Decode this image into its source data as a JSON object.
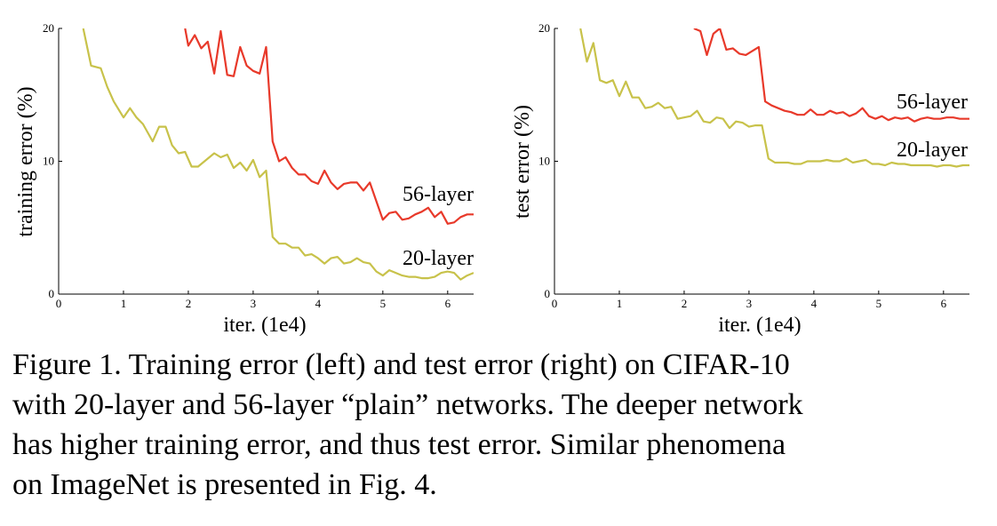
{
  "caption": {
    "lines": [
      "Figure 1. Training error (left) and test error (right) on CIFAR-10",
      "with 20-layer and 56-layer “plain” networks. The deeper network",
      "has higher training error, and thus test error.  Similar phenomena",
      "on ImageNet is presented in Fig. 4."
    ]
  },
  "colors": {
    "red": "#e8392a",
    "olive": "#c8c24a"
  },
  "chart_data": [
    {
      "type": "line",
      "title": "",
      "xlabel": "iter. (1e4)",
      "ylabel": "training error (%)",
      "xlim": [
        0,
        6.4
      ],
      "ylim": [
        0,
        20
      ],
      "xticks": [
        0,
        1,
        2,
        3,
        4,
        5,
        6
      ],
      "yticks": [
        0,
        10,
        20
      ],
      "grid": false,
      "series": [
        {
          "name": "56-layer",
          "color": "#e8392a",
          "x": [
            1.95,
            2.0,
            2.1,
            2.2,
            2.3,
            2.4,
            2.5,
            2.6,
            2.7,
            2.8,
            2.9,
            3.0,
            3.1,
            3.2,
            3.3,
            3.4,
            3.5,
            3.6,
            3.7,
            3.8,
            3.9,
            4.0,
            4.1,
            4.2,
            4.3,
            4.4,
            4.5,
            4.6,
            4.7,
            4.8,
            4.9,
            5.0,
            5.1,
            5.2,
            5.3,
            5.4,
            5.5,
            5.6,
            5.7,
            5.8,
            5.9,
            6.0,
            6.1,
            6.2,
            6.3,
            6.4
          ],
          "y": [
            20.0,
            18.7,
            19.5,
            18.5,
            19.0,
            16.6,
            19.8,
            16.5,
            16.4,
            18.6,
            17.2,
            16.8,
            16.6,
            18.6,
            11.5,
            10.0,
            10.3,
            9.5,
            9.0,
            9.0,
            8.5,
            8.3,
            9.3,
            8.4,
            7.9,
            8.3,
            8.4,
            8.4,
            7.8,
            8.4,
            7.0,
            5.6,
            6.1,
            6.2,
            5.6,
            5.7,
            6.0,
            6.2,
            6.5,
            5.8,
            6.2,
            5.3,
            5.4,
            5.8,
            6.0,
            6.0
          ]
        },
        {
          "name": "20-layer",
          "color": "#c8c24a",
          "x": [
            0.38,
            0.5,
            0.65,
            0.75,
            0.85,
            1.0,
            1.1,
            1.2,
            1.3,
            1.45,
            1.55,
            1.65,
            1.75,
            1.85,
            1.95,
            2.05,
            2.15,
            2.3,
            2.4,
            2.5,
            2.6,
            2.7,
            2.8,
            2.9,
            3.0,
            3.1,
            3.2,
            3.3,
            3.4,
            3.5,
            3.6,
            3.7,
            3.8,
            3.9,
            4.0,
            4.1,
            4.2,
            4.3,
            4.4,
            4.5,
            4.6,
            4.7,
            4.8,
            4.9,
            5.0,
            5.1,
            5.2,
            5.3,
            5.4,
            5.5,
            5.6,
            5.7,
            5.8,
            5.9,
            6.0,
            6.1,
            6.2,
            6.3,
            6.4
          ],
          "y": [
            20.0,
            17.2,
            17.0,
            15.6,
            14.5,
            13.3,
            14.0,
            13.3,
            12.8,
            11.5,
            12.6,
            12.6,
            11.2,
            10.6,
            10.7,
            9.6,
            9.6,
            10.2,
            10.6,
            10.3,
            10.5,
            9.5,
            9.9,
            9.3,
            10.1,
            8.8,
            9.3,
            4.3,
            3.8,
            3.8,
            3.5,
            3.5,
            2.9,
            3.0,
            2.7,
            2.3,
            2.7,
            2.8,
            2.3,
            2.4,
            2.7,
            2.4,
            2.3,
            1.7,
            1.4,
            1.8,
            1.6,
            1.4,
            1.3,
            1.3,
            1.2,
            1.2,
            1.3,
            1.6,
            1.7,
            1.6,
            1.1,
            1.4,
            1.6
          ]
        }
      ]
    },
    {
      "type": "line",
      "title": "",
      "xlabel": "iter. (1e4)",
      "ylabel": "test error (%)",
      "xlim": [
        0,
        6.4
      ],
      "ylim": [
        0,
        20
      ],
      "xticks": [
        0,
        1,
        2,
        3,
        4,
        5,
        6
      ],
      "yticks": [
        0,
        10,
        20
      ],
      "grid": false,
      "series": [
        {
          "name": "56-layer",
          "color": "#e8392a",
          "x": [
            2.15,
            2.25,
            2.35,
            2.45,
            2.55,
            2.65,
            2.75,
            2.85,
            2.95,
            3.05,
            3.15,
            3.25,
            3.35,
            3.45,
            3.55,
            3.65,
            3.75,
            3.85,
            3.95,
            4.05,
            4.15,
            4.25,
            4.35,
            4.45,
            4.55,
            4.65,
            4.75,
            4.85,
            4.95,
            5.05,
            5.15,
            5.25,
            5.35,
            5.45,
            5.55,
            5.65,
            5.75,
            5.85,
            5.95,
            6.05,
            6.15,
            6.25,
            6.4
          ],
          "y": [
            20.0,
            19.8,
            18.0,
            19.6,
            20.0,
            18.4,
            18.5,
            18.1,
            18.0,
            18.3,
            18.6,
            14.5,
            14.2,
            14.0,
            13.8,
            13.7,
            13.5,
            13.5,
            13.9,
            13.5,
            13.5,
            13.8,
            13.6,
            13.7,
            13.4,
            13.6,
            14.0,
            13.4,
            13.2,
            13.4,
            13.1,
            13.3,
            13.2,
            13.3,
            13.0,
            13.2,
            13.3,
            13.2,
            13.2,
            13.3,
            13.3,
            13.2,
            13.2
          ]
        },
        {
          "name": "20-layer",
          "color": "#c8c24a",
          "x": [
            0.4,
            0.5,
            0.6,
            0.7,
            0.8,
            0.9,
            1.0,
            1.1,
            1.2,
            1.3,
            1.4,
            1.5,
            1.6,
            1.7,
            1.8,
            1.9,
            2.0,
            2.1,
            2.2,
            2.3,
            2.4,
            2.5,
            2.6,
            2.7,
            2.8,
            2.9,
            3.0,
            3.1,
            3.2,
            3.3,
            3.4,
            3.5,
            3.6,
            3.7,
            3.8,
            3.9,
            4.0,
            4.1,
            4.2,
            4.3,
            4.4,
            4.5,
            4.6,
            4.7,
            4.8,
            4.9,
            5.0,
            5.1,
            5.2,
            5.3,
            5.4,
            5.5,
            5.6,
            5.7,
            5.8,
            5.9,
            6.0,
            6.1,
            6.2,
            6.3,
            6.4
          ],
          "y": [
            20.0,
            17.5,
            18.9,
            16.1,
            15.9,
            16.1,
            14.9,
            16.0,
            14.8,
            14.8,
            14.0,
            14.1,
            14.4,
            14.0,
            14.1,
            13.2,
            13.3,
            13.4,
            13.8,
            13.0,
            12.9,
            13.3,
            13.2,
            12.5,
            13.0,
            12.9,
            12.6,
            12.7,
            12.7,
            10.2,
            9.9,
            9.9,
            9.9,
            9.8,
            9.8,
            10.0,
            10.0,
            10.0,
            10.1,
            10.0,
            10.0,
            10.2,
            9.9,
            10.0,
            10.1,
            9.8,
            9.8,
            9.7,
            9.9,
            9.8,
            9.8,
            9.7,
            9.7,
            9.7,
            9.7,
            9.6,
            9.7,
            9.7,
            9.6,
            9.7,
            9.7
          ]
        }
      ]
    }
  ]
}
